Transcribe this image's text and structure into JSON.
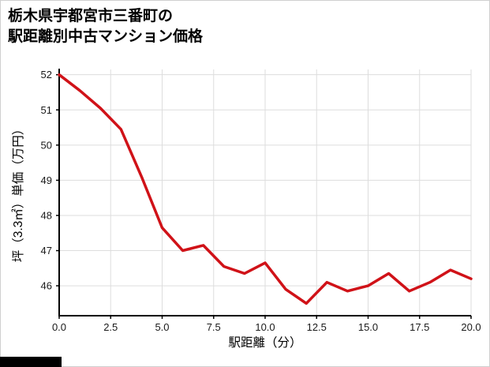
{
  "title": {
    "line1": "栃木県宇都宮市三番町の",
    "line2": "駅距離別中古マンション価格"
  },
  "chart_data": {
    "type": "line",
    "title": "栃木県宇都宮市三番町の駅距離別中古マンション価格",
    "xlabel": "駅距離（分）",
    "ylabel": "坪（3.3㎡）単価（万円）",
    "x": [
      0,
      1,
      2,
      3,
      4,
      5,
      6,
      7,
      8,
      9,
      10,
      11,
      12,
      13,
      14,
      15,
      16,
      17,
      18,
      19,
      20
    ],
    "values": [
      52.0,
      51.55,
      51.05,
      50.45,
      49.1,
      47.65,
      47.0,
      47.15,
      46.55,
      46.35,
      46.65,
      45.9,
      45.5,
      46.1,
      45.85,
      46.0,
      46.35,
      45.85,
      46.1,
      46.45,
      46.2
    ],
    "xlim": [
      0,
      20
    ],
    "ylim": [
      45.15,
      52.15
    ],
    "xticks": [
      0,
      2.5,
      5,
      7.5,
      10,
      12.5,
      15,
      17.5,
      20
    ],
    "xtick_labels": [
      "0.0",
      "2.5",
      "5.0",
      "7.5",
      "10.0",
      "12.5",
      "15.0",
      "17.5",
      "20.0"
    ],
    "yticks": [
      46,
      47,
      48,
      49,
      50,
      51,
      52
    ],
    "ytick_labels": [
      "46",
      "47",
      "48",
      "49",
      "50",
      "51",
      "52"
    ],
    "grid": true,
    "legend": "none",
    "line_color": "#d01218",
    "grid_color": "#dddddd",
    "axis_color": "#000000",
    "tick_label_color": "#1a1a1a",
    "line_width": 3.5
  }
}
